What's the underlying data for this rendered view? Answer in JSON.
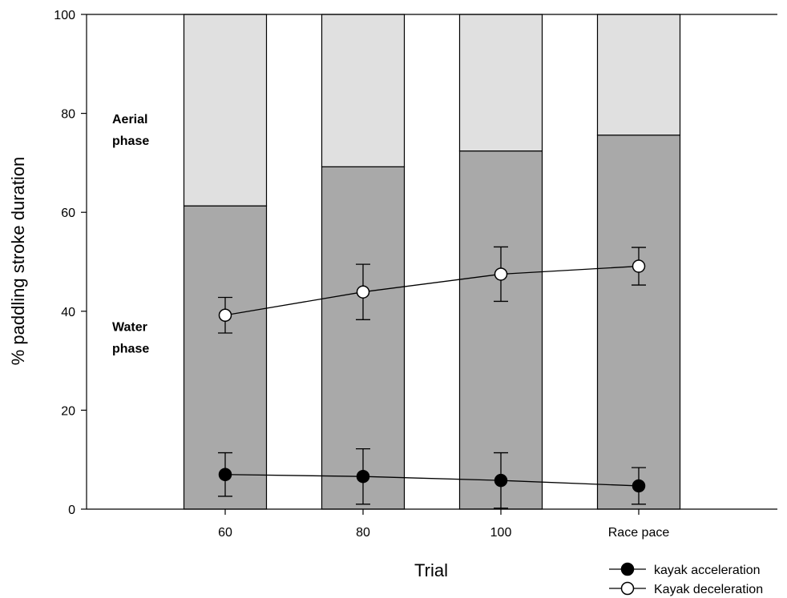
{
  "chart_data": {
    "type": "bar",
    "categories": [
      "60",
      "80",
      "100",
      "Race pace"
    ],
    "xlabel": "Trial",
    "ylabel": "% paddling stroke duration",
    "ylim": [
      0,
      100
    ],
    "yticks": [
      0,
      20,
      40,
      60,
      80,
      100
    ],
    "stacked_bars": [
      {
        "values": [
          61.3,
          69.2,
          72.4,
          75.6
        ],
        "color": "#a9a9a9"
      },
      {
        "values": [
          38.7,
          30.8,
          27.6,
          24.4
        ],
        "color": "#e0e0e0"
      }
    ],
    "annotations": [
      {
        "text_lines": [
          "Aerial",
          "phase"
        ],
        "at_y": 78
      },
      {
        "text_lines": [
          "Water",
          "phase"
        ],
        "at_y": 36
      }
    ],
    "series": [
      {
        "name": "kayak acceleration",
        "marker": "filled-circle",
        "values": [
          7.0,
          6.6,
          5.8,
          4.7
        ],
        "errors": [
          4.4,
          5.6,
          5.6,
          3.7
        ]
      },
      {
        "name": "Kayak deceleration",
        "marker": "open-circle",
        "values": [
          39.2,
          43.9,
          47.5,
          49.1
        ],
        "errors": [
          3.6,
          5.6,
          5.5,
          3.8
        ]
      }
    ],
    "legend_position": "bottom-right",
    "grid": false
  }
}
